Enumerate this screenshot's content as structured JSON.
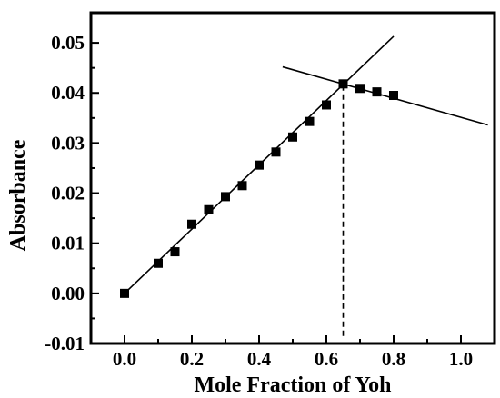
{
  "chart_data": {
    "type": "scatter",
    "title": "",
    "xlabel": "Mole Fraction of Yoh",
    "ylabel": "Absorbance",
    "xlim": [
      -0.1,
      1.1
    ],
    "ylim": [
      -0.01,
      0.056
    ],
    "x_ticks": [
      0.0,
      0.2,
      0.4,
      0.6,
      0.8,
      1.0
    ],
    "x_tick_labels": [
      "0.0",
      "0.2",
      "0.4",
      "0.6",
      "0.8",
      "1.0"
    ],
    "y_ticks": [
      -0.01,
      0.0,
      0.01,
      0.02,
      0.03,
      0.04,
      0.05
    ],
    "y_tick_labels": [
      "-0.01",
      "0.00",
      "0.01",
      "0.02",
      "0.03",
      "0.04",
      "0.05"
    ],
    "grid": false,
    "legend": "none",
    "series": [
      {
        "marker": "square",
        "color": "#000000",
        "x": [
          0.0,
          0.1,
          0.15,
          0.2,
          0.25,
          0.3,
          0.35,
          0.4,
          0.45,
          0.5,
          0.55,
          0.6,
          0.65,
          0.7,
          0.75,
          0.8
        ],
        "y": [
          0.0,
          0.006,
          0.0083,
          0.0138,
          0.0167,
          0.0193,
          0.0215,
          0.0256,
          0.0282,
          0.0312,
          0.0343,
          0.0376,
          0.0418,
          0.0409,
          0.0402,
          0.0395
        ]
      }
    ],
    "fit_lines": [
      {
        "x": [
          0.0,
          0.8
        ],
        "y": [
          0.0,
          0.0513
        ]
      },
      {
        "x": [
          0.47,
          1.08
        ],
        "y": [
          0.0452,
          0.0336
        ]
      }
    ],
    "reference_lines": [
      {
        "type": "vertical",
        "x": 0.65,
        "y_from": -0.0085,
        "y_to": 0.0418,
        "style": "dashed"
      }
    ]
  }
}
